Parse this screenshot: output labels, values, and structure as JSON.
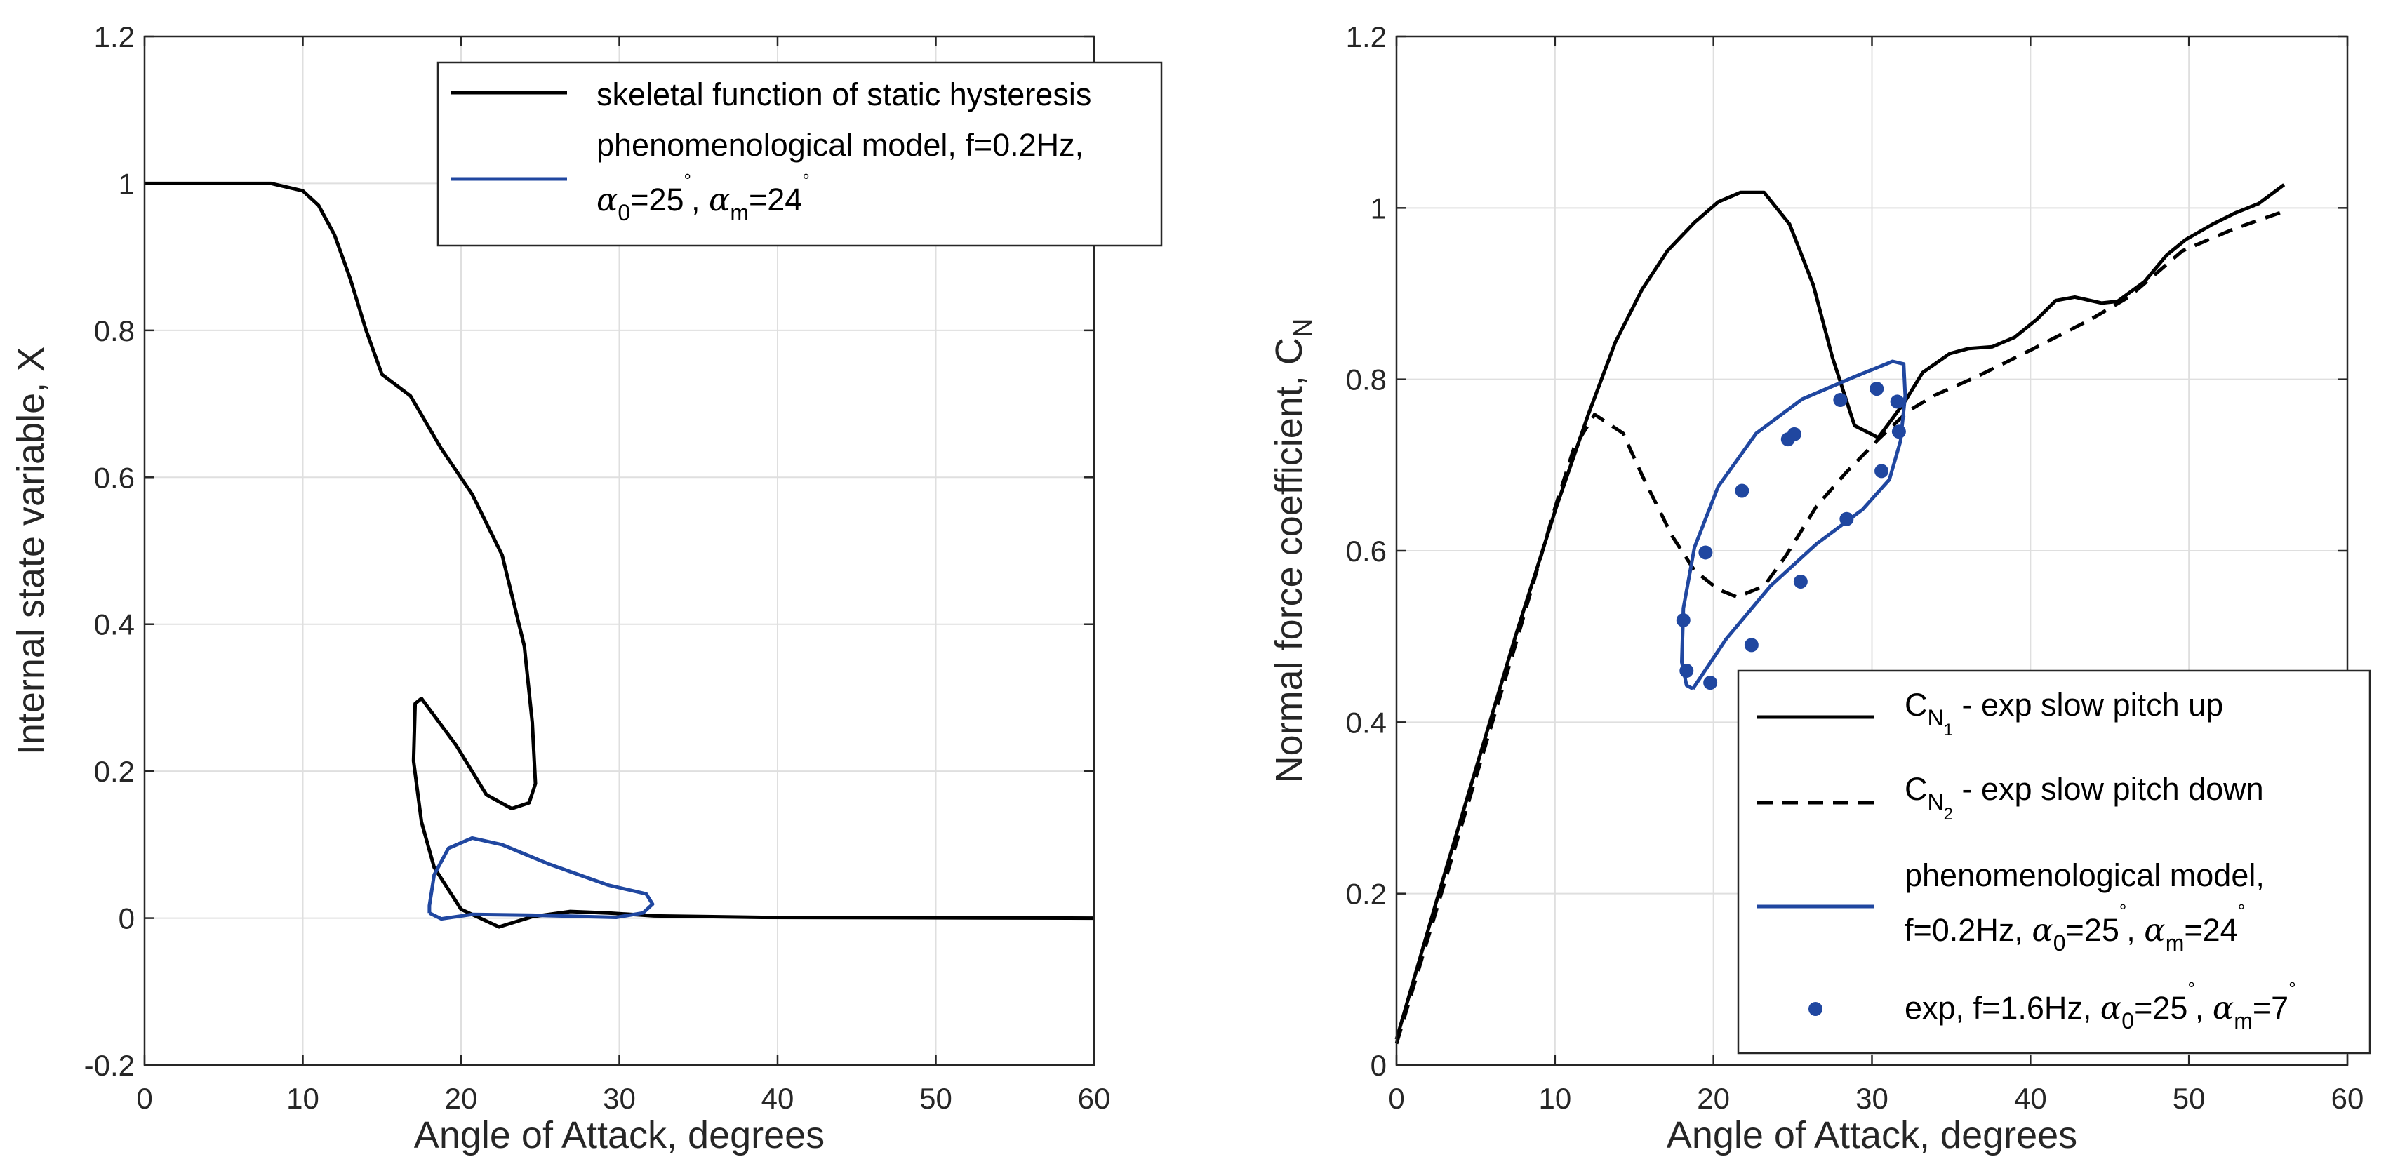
{
  "colors": {
    "black": "#000000",
    "blue": "#2047a0",
    "grid": "#dfdfdf",
    "axis": "#262626"
  },
  "chart_data": [
    {
      "type": "line",
      "xlabel": "Angle of Attack, degrees",
      "ylabel": "Internal state variable, X",
      "xlim": [
        0,
        60
      ],
      "ylim": [
        -0.2,
        1.2
      ],
      "xticks": [
        "0",
        "10",
        "20",
        "30",
        "40",
        "50",
        "60"
      ],
      "yticks": [
        "-0.2",
        "0",
        "0.2",
        "0.4",
        "0.6",
        "0.8",
        "1",
        "1.2"
      ],
      "grid": true,
      "legend_placement": "top-right",
      "legend": [
        {
          "style": "solid-black",
          "lines": [
            [
              {
                "t": "skeletal function of static hysteresis"
              }
            ]
          ]
        },
        {
          "style": "solid-blue",
          "lines": [
            [
              {
                "t": "phenomenological model, f=0.2Hz,"
              }
            ],
            [
              {
                "t": "α",
                "g": true
              },
              {
                "t": "0",
                "sub": true
              },
              {
                "t": "=25"
              },
              {
                "t": "°",
                "sup": true
              },
              {
                "t": ", "
              },
              {
                "t": "α",
                "g": true
              },
              {
                "t": "m",
                "sub": true
              },
              {
                "t": "=24"
              },
              {
                "t": "°",
                "sup": true
              }
            ]
          ]
        }
      ],
      "series": [
        {
          "style": "solid-black",
          "x": [
            0,
            8,
            10,
            11,
            12,
            13,
            14,
            15,
            16.8,
            18.75,
            20.7,
            22.6,
            24.0,
            24.5,
            24.7,
            24.3,
            23.2,
            21.6,
            19.7,
            17.5,
            17.1,
            17.0,
            17.5,
            18.3,
            20.0,
            22.4,
            24.5,
            26.9,
            29.3,
            32.2,
            39,
            60
          ],
          "y": [
            1,
            1,
            0.99,
            0.97,
            0.93,
            0.87,
            0.8,
            0.74,
            0.711,
            0.639,
            0.577,
            0.494,
            0.37,
            0.266,
            0.183,
            0.157,
            0.149,
            0.168,
            0.235,
            0.299,
            0.292,
            0.214,
            0.131,
            0.069,
            0.012,
            -0.012,
            0.002,
            0.009,
            0.007,
            0.003,
            0.001,
            0
          ]
        },
        {
          "style": "solid-blue",
          "x": [
            18.0,
            18.75,
            20.7,
            24.5,
            29.8,
            31.5,
            32.1,
            31.7,
            29.3,
            25.5,
            22.6,
            20.7,
            19.2,
            18.3,
            18.0,
            18.0
          ],
          "y": [
            0.007,
            -0.001,
            0.005,
            0.004,
            0.001,
            0.007,
            0.019,
            0.033,
            0.045,
            0.074,
            0.1,
            0.109,
            0.095,
            0.059,
            0.017,
            0.007
          ]
        }
      ]
    },
    {
      "type": "line",
      "xlabel": "Angle of Attack, degrees",
      "ylabel": "Normal force coefficient, C",
      "ylabel_sub": "N",
      "xlim": [
        0,
        60
      ],
      "ylim": [
        0,
        1.2
      ],
      "xticks": [
        "0",
        "10",
        "20",
        "30",
        "40",
        "50",
        "60"
      ],
      "yticks": [
        "0",
        "0.2",
        "0.4",
        "0.6",
        "0.8",
        "1",
        "1.2"
      ],
      "grid": true,
      "legend_placement": "bottom-right",
      "legend": [
        {
          "style": "solid-black",
          "lines": [
            [
              {
                "t": "C"
              },
              {
                "t": "N",
                "sub": true
              },
              {
                "t": "1",
                "sub2": true
              },
              {
                "t": "  -  exp slow pitch up"
              }
            ]
          ]
        },
        {
          "style": "dashed-black",
          "lines": [
            [
              {
                "t": "C"
              },
              {
                "t": "N",
                "sub": true
              },
              {
                "t": "2",
                "sub2": true
              },
              {
                "t": " - exp slow pitch down"
              }
            ]
          ]
        },
        {
          "style": "solid-blue",
          "lines": [
            [
              {
                "t": "phenomenological model,"
              }
            ],
            [
              {
                "t": "f=0.2Hz, "
              },
              {
                "t": "α",
                "g": true
              },
              {
                "t": "0",
                "sub": true
              },
              {
                "t": "=25"
              },
              {
                "t": "°",
                "sup": true
              },
              {
                "t": ", "
              },
              {
                "t": "α",
                "g": true
              },
              {
                "t": "m",
                "sub": true
              },
              {
                "t": "=24"
              },
              {
                "t": "°",
                "sup": true
              }
            ]
          ]
        },
        {
          "style": "dots-blue",
          "lines": [
            [
              {
                "t": "exp, f=1.6Hz, "
              },
              {
                "t": "α",
                "g": true
              },
              {
                "t": "0",
                "sub": true
              },
              {
                "t": "=25"
              },
              {
                "t": "°",
                "sup": true
              },
              {
                "t": ", "
              },
              {
                "t": "α",
                "g": true
              },
              {
                "t": "m",
                "sub": true
              },
              {
                "t": "=7"
              },
              {
                "t": "°",
                "sup": true
              }
            ]
          ]
        }
      ],
      "series": [
        {
          "name": "CN1 - exp slow pitch up",
          "style": "solid-black",
          "x": [
            0,
            2.5,
            5,
            7.5,
            10.1,
            12.1,
            13.8,
            15.5,
            17.1,
            18.8,
            20.3,
            21.7,
            23.2,
            24.8,
            26.3,
            27.5,
            28.9,
            30.4,
            32.0,
            33.2,
            34.9,
            36.1,
            37.6,
            39.0,
            40.4,
            41.6,
            42.8,
            44.5,
            45.5,
            47.2,
            48.6,
            49.8,
            51.5,
            52.9,
            54.4,
            56.0
          ],
          "y": [
            0.03,
            0.19,
            0.345,
            0.5,
            0.652,
            0.759,
            0.843,
            0.905,
            0.95,
            0.983,
            1.007,
            1.018,
            1.018,
            0.981,
            0.91,
            0.826,
            0.746,
            0.732,
            0.772,
            0.808,
            0.83,
            0.836,
            0.838,
            0.849,
            0.87,
            0.892,
            0.896,
            0.889,
            0.891,
            0.914,
            0.945,
            0.963,
            0.981,
            0.994,
            1.005,
            1.027
          ]
        },
        {
          "name": "CN2 - exp slow pitch down",
          "style": "dashed-black",
          "x": [
            0,
            2.5,
            5,
            7.5,
            10,
            11.2,
            12.5,
            14.3,
            15.5,
            17.4,
            18.8,
            20.3,
            21.5,
            23.2,
            24.6,
            26.5,
            28.4,
            30.4,
            32.3,
            33.9,
            36.6,
            40.0,
            43.8,
            46.2,
            49.6,
            52.9,
            56.0
          ],
          "y": [
            0.025,
            0.18,
            0.335,
            0.49,
            0.65,
            0.72,
            0.759,
            0.737,
            0.688,
            0.617,
            0.577,
            0.555,
            0.546,
            0.559,
            0.595,
            0.652,
            0.692,
            0.73,
            0.763,
            0.781,
            0.803,
            0.834,
            0.87,
            0.896,
            0.95,
            0.976,
            0.996
          ]
        },
        {
          "name": "phenomenological model",
          "style": "solid-blue",
          "x": [
            18.7,
            20.8,
            23.6,
            26.5,
            29.4,
            31.1,
            31.8,
            32.1,
            32.0,
            31.3,
            28.9,
            25.6,
            22.7,
            20.3,
            18.8,
            18.1,
            18.0,
            18.3,
            18.7
          ],
          "y": [
            0.439,
            0.497,
            0.559,
            0.608,
            0.648,
            0.683,
            0.728,
            0.781,
            0.818,
            0.821,
            0.803,
            0.777,
            0.737,
            0.675,
            0.604,
            0.533,
            0.47,
            0.443,
            0.439
          ]
        },
        {
          "name": "exp, f=1.6Hz",
          "style": "dots-blue",
          "x": [
            18.1,
            18.3,
            19.5,
            19.8,
            21.8,
            22.4,
            24.7,
            25.1,
            25.5,
            28.0,
            28.4,
            30.3,
            30.6,
            31.6,
            31.7
          ],
          "y": [
            0.519,
            0.46,
            0.598,
            0.446,
            0.67,
            0.49,
            0.73,
            0.736,
            0.564,
            0.776,
            0.637,
            0.789,
            0.693,
            0.774,
            0.739
          ]
        }
      ]
    }
  ]
}
